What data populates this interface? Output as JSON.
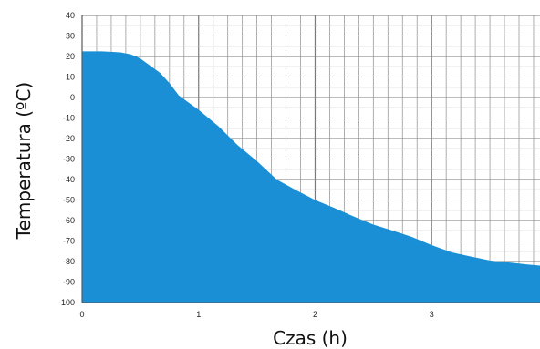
{
  "chart_data": {
    "type": "area",
    "xlabel": "Czas (h)",
    "ylabel": "Temperatura (ºC)",
    "xlim": [
      0,
      3.93
    ],
    "ylim": [
      -100,
      40
    ],
    "x_ticks": [
      0,
      1,
      2,
      3
    ],
    "x_tick_labels": [
      "0",
      "1",
      "2",
      "3"
    ],
    "y_ticks": [
      40,
      30,
      20,
      10,
      0,
      -10,
      -20,
      -30,
      -40,
      -50,
      -60,
      -70,
      -80,
      -90,
      -100
    ],
    "y_tick_labels": [
      "40",
      "30",
      "20",
      "10",
      "0",
      "-10",
      "-20",
      "-30",
      "-40",
      "-50",
      "-60",
      "-70",
      "-80",
      "-90",
      "-100"
    ],
    "x_minor_step": 0.125,
    "y_minor_step": 5,
    "grid": true,
    "fill_color": "#1a8fd6",
    "grid_color": "#9a9a9a",
    "series": [
      {
        "x": [
          0,
          0.17,
          0.33,
          0.42,
          0.5,
          0.67,
          0.75,
          0.83,
          1.0,
          1.17,
          1.33,
          1.5,
          1.67,
          1.83,
          2.0,
          2.17,
          2.33,
          2.5,
          2.67,
          2.83,
          3.0,
          3.17,
          3.33,
          3.5,
          3.67,
          3.83,
          3.93
        ],
        "y": [
          22.5,
          22.5,
          22,
          21,
          19,
          12,
          7,
          1,
          -6,
          -14,
          -23,
          -31,
          -40,
          -45,
          -50,
          -54,
          -58,
          -62,
          -65,
          -68,
          -72,
          -75.5,
          -77.5,
          -79.5,
          -80.5,
          -81.5,
          -82
        ]
      }
    ]
  }
}
